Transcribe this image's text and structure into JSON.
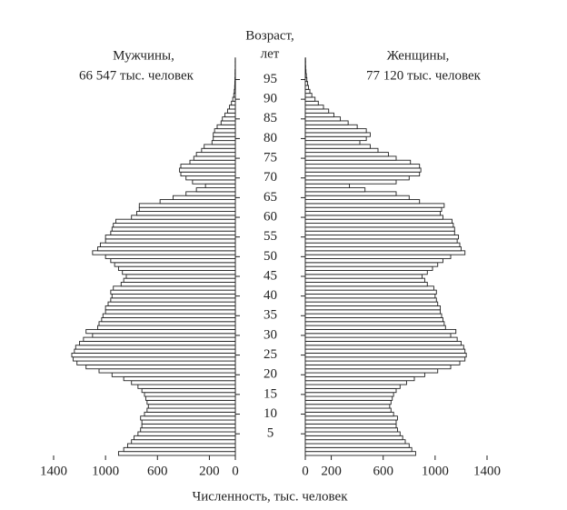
{
  "chart_data": {
    "type": "population-pyramid",
    "age_label": [
      "Возраст,",
      "лет"
    ],
    "x_label": "Численность, тыс. человек",
    "x": [
      0,
      1,
      2,
      3,
      4,
      5,
      6,
      7,
      8,
      9,
      10,
      11,
      12,
      13,
      14,
      15,
      16,
      17,
      18,
      19,
      20,
      21,
      22,
      23,
      24,
      25,
      26,
      27,
      28,
      29,
      30,
      31,
      32,
      33,
      34,
      35,
      36,
      37,
      38,
      39,
      40,
      41,
      42,
      43,
      44,
      45,
      46,
      47,
      48,
      49,
      50,
      51,
      52,
      53,
      54,
      55,
      56,
      57,
      58,
      59,
      60,
      61,
      62,
      63,
      64,
      65,
      66,
      67,
      68,
      69,
      70,
      71,
      72,
      73,
      74,
      75,
      76,
      77,
      78,
      79,
      80,
      81,
      82,
      83,
      84,
      85,
      86,
      87,
      88,
      89,
      90,
      91,
      92,
      93,
      94,
      95,
      96,
      97,
      98,
      99,
      100
    ],
    "yticks": [
      5,
      10,
      15,
      20,
      25,
      30,
      35,
      40,
      45,
      50,
      55,
      60,
      65,
      70,
      75,
      80,
      85,
      90,
      95
    ],
    "xlim": [
      0,
      1400
    ],
    "xticks": [
      0,
      200,
      600,
      1000,
      1400
    ],
    "series": [
      {
        "name": "Мужчины,",
        "total": "66 547 тыс. человек",
        "side": "left",
        "color": "#ffffff",
        "values": [
          900,
          860,
          830,
          800,
          780,
          750,
          730,
          720,
          720,
          730,
          700,
          680,
          670,
          680,
          690,
          700,
          720,
          750,
          800,
          860,
          950,
          1050,
          1150,
          1220,
          1250,
          1260,
          1240,
          1230,
          1200,
          1170,
          1100,
          1150,
          1060,
          1050,
          1030,
          1020,
          1000,
          1000,
          980,
          960,
          950,
          960,
          940,
          880,
          860,
          840,
          870,
          900,
          930,
          960,
          1000,
          1100,
          1060,
          1040,
          1000,
          1000,
          960,
          950,
          940,
          920,
          800,
          760,
          740,
          740,
          580,
          480,
          380,
          300,
          230,
          330,
          380,
          420,
          430,
          420,
          350,
          320,
          300,
          260,
          240,
          180,
          170,
          170,
          160,
          140,
          110,
          100,
          80,
          60,
          45,
          30,
          20,
          12,
          8,
          5,
          4,
          3,
          2,
          2,
          1,
          1,
          1
        ]
      },
      {
        "name": "Женщины,",
        "total": "77 120 тыс. человек",
        "side": "right",
        "color": "#ffffff",
        "values": [
          850,
          820,
          800,
          770,
          750,
          730,
          710,
          700,
          700,
          710,
          680,
          660,
          650,
          660,
          670,
          680,
          700,
          730,
          780,
          840,
          920,
          1020,
          1120,
          1190,
          1230,
          1240,
          1230,
          1220,
          1200,
          1170,
          1120,
          1160,
          1080,
          1070,
          1060,
          1050,
          1040,
          1040,
          1020,
          1010,
          1000,
          1010,
          990,
          940,
          920,
          900,
          940,
          980,
          1020,
          1060,
          1120,
          1230,
          1200,
          1190,
          1170,
          1180,
          1150,
          1150,
          1140,
          1130,
          1060,
          1040,
          1050,
          1070,
          880,
          800,
          700,
          460,
          340,
          700,
          800,
          880,
          890,
          880,
          810,
          700,
          640,
          560,
          500,
          420,
          470,
          500,
          470,
          400,
          330,
          270,
          220,
          180,
          140,
          100,
          75,
          50,
          35,
          25,
          18,
          12,
          8,
          5,
          3,
          2,
          2
        ]
      }
    ]
  }
}
